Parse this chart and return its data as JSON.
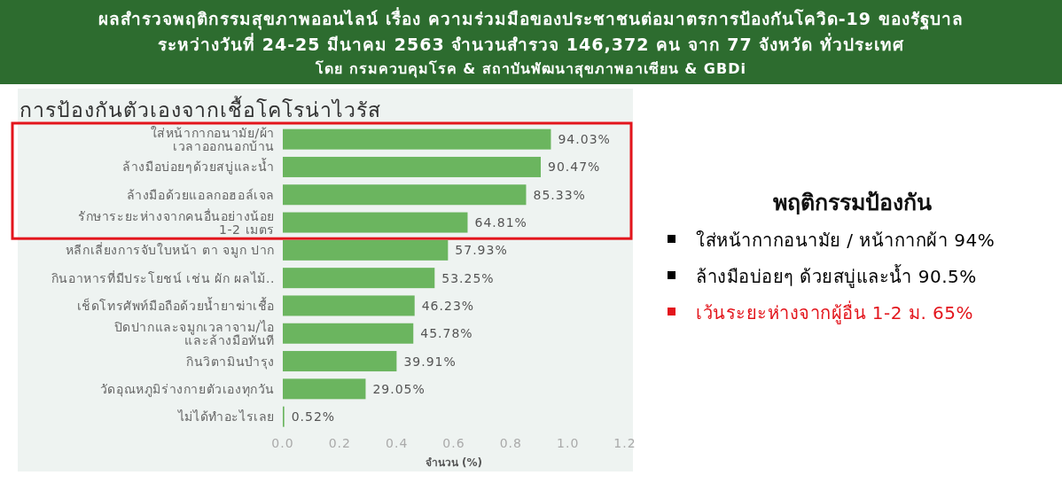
{
  "chart_data": [
    {
      "type": "other",
      "title": "ผลสำรวจพฤติกรรมสุขภาพออนไลน์ เรื่อง ความร่วมมือของประชาชนต่อมาตรการป้องกันโควิด-19 ของรัฐบาล",
      "subtitle": "ระหว่างวันที่ 24-25 มีนาคม 2563 จำนวนสำรวจ 146,372 คน จาก 77 จังหวัด ทั่วประเทศ",
      "annotations": [
        "โดย กรมควบคุมโรค & สถาบันพัฒนาสุขภาพอาเซียน & GBDi"
      ]
    },
    {
      "type": "bar",
      "orientation": "horizontal",
      "title": "การป้องกันตัวเองจากเชื้อโคโรน่าไวรัส",
      "xlabel": "จำนวน (%)",
      "categories": [
        "ใส่หน้ากากอนามัย/ผ้า\nเวลาออกนอกบ้าน",
        "ล้างมือบ่อยๆด้วยสบู่และน้ำ",
        "ล้างมือด้วยแอลกอฮอล์เจล",
        "รักษาระยะห่างจากคนอื่นอย่างน้อย\n1-2 เมตร",
        "หลีกเลี่ยงการจับใบหน้า ตา จมูก ปาก",
        "กินอาหารที่มีประโยชน์ เช่น ผัก ผลไม้..",
        "เช็ดโทรศัพท์มือถือด้วยน้ำยาฆ่าเชื้อ",
        "ปิดปากและจมูกเวลาจาม/ไอ\nและล้างมือทันที",
        "กินวิตามินบำรุง",
        "วัดอุณหภูมิร่างกายตัวเองทุกวัน",
        "ไม่ได้ทำอะไรเลย"
      ],
      "values": [
        0.9403,
        0.9047,
        0.8533,
        0.6481,
        0.5793,
        0.5325,
        0.4623,
        0.4578,
        0.3991,
        0.2905,
        0.0052
      ],
      "value_labels": [
        "94.03%",
        "90.47%",
        "85.33%",
        "64.81%",
        "57.93%",
        "53.25%",
        "46.23%",
        "45.78%",
        "39.91%",
        "29.05%",
        "0.52%"
      ],
      "color": "#6bb55f",
      "xlim": [
        0,
        1.2
      ],
      "xticks": [
        {
          "value": 0,
          "label": "0.0"
        },
        0.2,
        0.4,
        0.6,
        0.8,
        {
          "value": 1,
          "label": "1.0"
        },
        1.2
      ]
    },
    {
      "type": "other",
      "title": "พฤติกรรมป้องกัน",
      "annotations": [
        "ใส่หน้ากากอนามัย / หน้ากากผ้า 94%",
        "ล้างมือบ่อยๆ ด้วยสบู่และน้ำ 90.5%",
        "เว้นระยะห่างจากผู้อื่น 1-2 ม. 65%"
      ],
      "colors": [
        "#000000",
        "#000000",
        "#e3151c"
      ]
    }
  ]
}
